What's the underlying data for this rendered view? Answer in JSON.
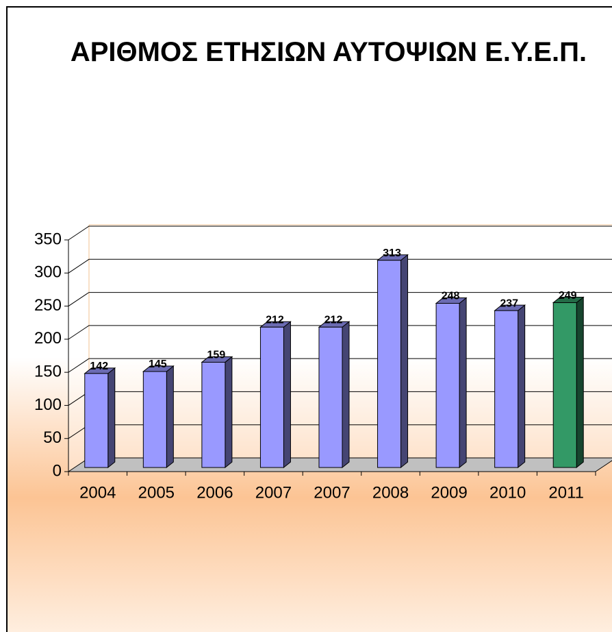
{
  "chart_data": {
    "type": "bar3d",
    "title": "ΑΡΙΘΜΟΣ ΕΤΗΣΙΩΝ ΑΥΤΟΨΙΩΝ Ε.Υ.Ε.Π.",
    "categories": [
      "2004",
      "2005",
      "2006",
      "2007",
      "2007",
      "2008",
      "2009",
      "2010",
      "2011"
    ],
    "values": [
      142,
      145,
      159,
      212,
      212,
      313,
      248,
      237,
      249
    ],
    "colors": [
      "#9999ff",
      "#9999ff",
      "#9999ff",
      "#9999ff",
      "#9999ff",
      "#9999ff",
      "#9999ff",
      "#9999ff",
      "#339966"
    ],
    "ylim": [
      0,
      350
    ],
    "yticks": [
      0,
      50,
      100,
      150,
      200,
      250,
      300,
      350
    ],
    "grid": true
  }
}
